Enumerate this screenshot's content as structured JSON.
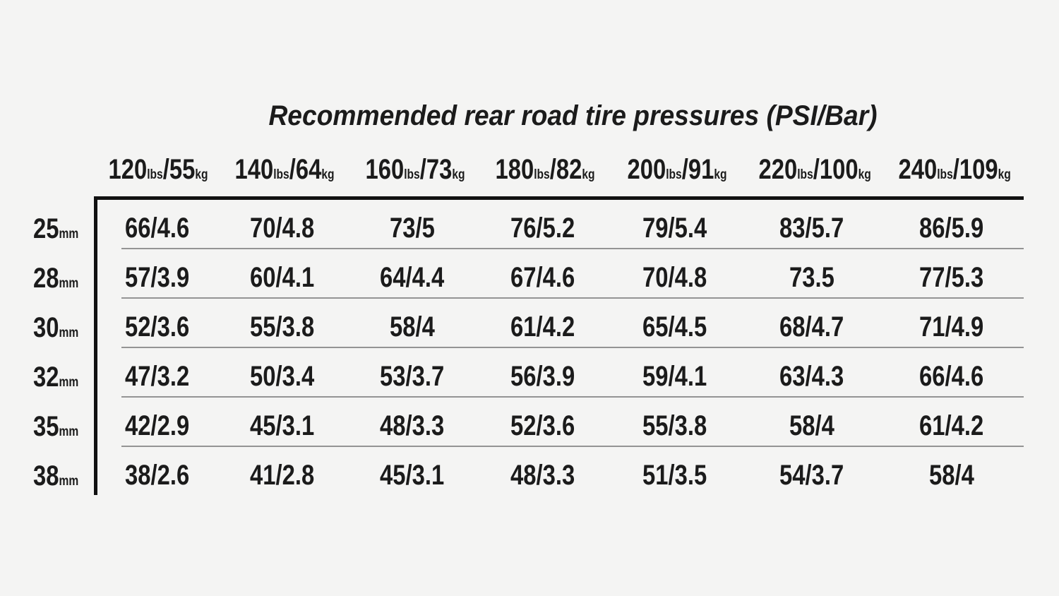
{
  "title": "Recommended rear road tire pressures (PSI/Bar)",
  "units": {
    "lbs": "lbs",
    "kg": "kg",
    "mm": "mm",
    "slash": "/"
  },
  "columns": [
    {
      "lbs": "120",
      "kg": "55"
    },
    {
      "lbs": "140",
      "kg": "64"
    },
    {
      "lbs": "160",
      "kg": "73"
    },
    {
      "lbs": "180",
      "kg": "82"
    },
    {
      "lbs": "200",
      "kg": "91"
    },
    {
      "lbs": "220",
      "kg": "100"
    },
    {
      "lbs": "240",
      "kg": "109"
    }
  ],
  "rows": [
    {
      "mm": "25"
    },
    {
      "mm": "28"
    },
    {
      "mm": "30"
    },
    {
      "mm": "32"
    },
    {
      "mm": "35"
    },
    {
      "mm": "38"
    }
  ],
  "colors": {
    "background": "#f4f4f3",
    "text": "#1b1b1b",
    "border": "#111111",
    "separator": "#949494"
  },
  "chart_data": {
    "type": "table",
    "title": "Recommended rear road tire pressures (PSI/Bar)",
    "column_headers": [
      "120lbs/55kg",
      "140lbs/64kg",
      "160lbs/73kg",
      "180lbs/82kg",
      "200lbs/91kg",
      "220lbs/100kg",
      "240lbs/109kg"
    ],
    "row_headers": [
      "25mm",
      "28mm",
      "30mm",
      "32mm",
      "35mm",
      "38mm"
    ],
    "cells": [
      [
        "66/4.6",
        "70/4.8",
        "73/5",
        "76/5.2",
        "79/5.4",
        "83/5.7",
        "86/5.9"
      ],
      [
        "57/3.9",
        "60/4.1",
        "64/4.4",
        "67/4.6",
        "70/4.8",
        "73.5",
        "77/5.3"
      ],
      [
        "52/3.6",
        "55/3.8",
        "58/4",
        "61/4.2",
        "65/4.5",
        "68/4.7",
        "71/4.9"
      ],
      [
        "47/3.2",
        "50/3.4",
        "53/3.7",
        "56/3.9",
        "59/4.1",
        "63/4.3",
        "66/4.6"
      ],
      [
        "42/2.9",
        "45/3.1",
        "48/3.3",
        "52/3.6",
        "55/3.8",
        "58/4",
        "61/4.2"
      ],
      [
        "38/2.6",
        "41/2.8",
        "45/3.1",
        "48/3.3",
        "51/3.5",
        "54/3.7",
        "58/4"
      ]
    ]
  }
}
